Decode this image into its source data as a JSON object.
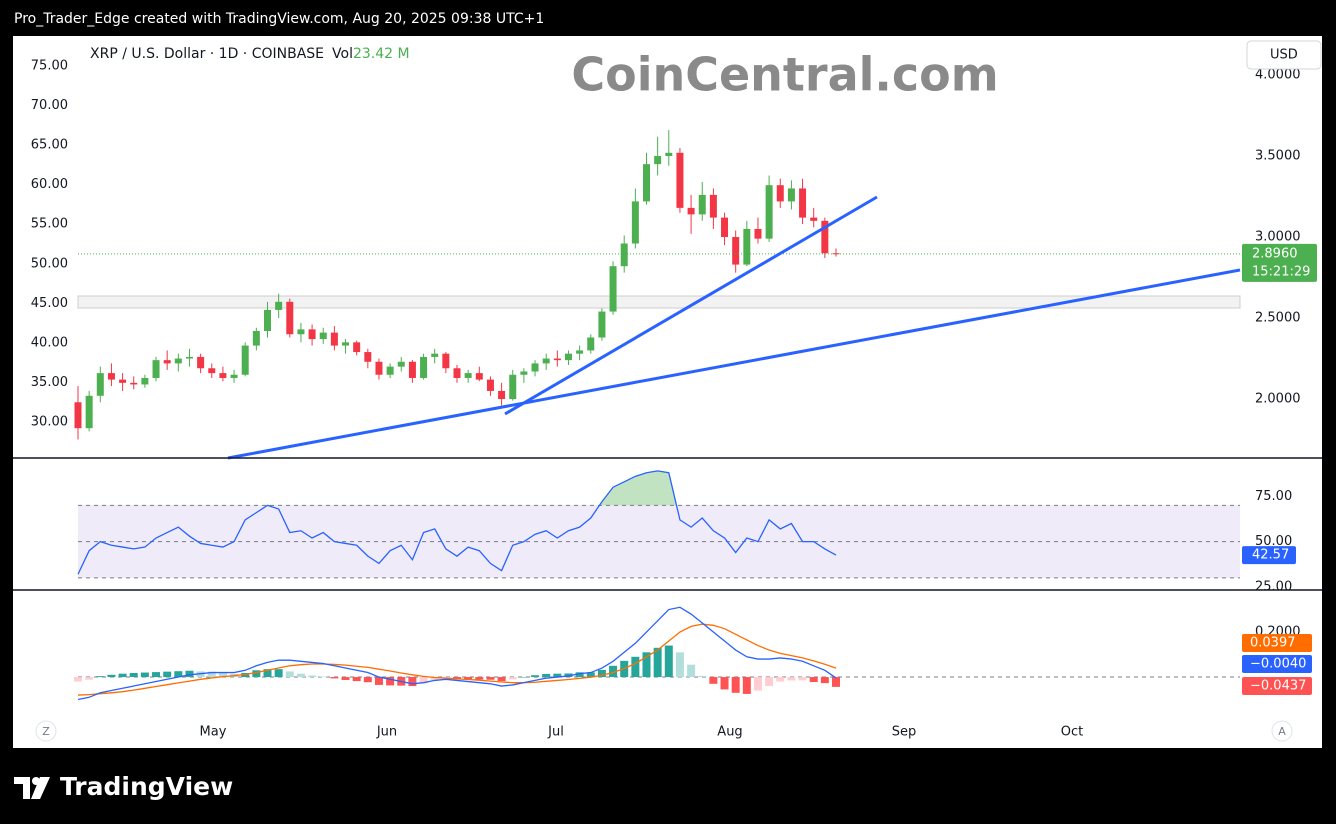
{
  "header": {
    "caption": "Pro_Trader_Edge created with TradingView.com, Aug 20, 2025 09:38 UTC+1"
  },
  "watermark": "CoinCentral.com",
  "buttons": {
    "currency": "USD",
    "zoom": "Z",
    "auto": "A"
  },
  "x_labels": [
    "May",
    "Jun",
    "Jul",
    "Aug",
    "Sep",
    "Oct"
  ],
  "footer": {
    "brand": "TradingView"
  },
  "chart_data": [
    {
      "type": "candlestick",
      "symbol": "XRP / U.S. Dollar · 1D · COINBASE",
      "volume": {
        "label": "Vol",
        "value_label": "23.42 M"
      },
      "colors": {
        "up": "#4caf50",
        "down": "#f23645"
      },
      "ohlc": [
        [
          1.98,
          2.08,
          1.75,
          1.82
        ],
        [
          1.82,
          2.05,
          1.8,
          2.02
        ],
        [
          2.02,
          2.2,
          1.98,
          2.16
        ],
        [
          2.16,
          2.22,
          2.08,
          2.12
        ],
        [
          2.12,
          2.16,
          2.05,
          2.1
        ],
        [
          2.1,
          2.14,
          2.06,
          2.09
        ],
        [
          2.09,
          2.15,
          2.07,
          2.13
        ],
        [
          2.13,
          2.26,
          2.11,
          2.24
        ],
        [
          2.24,
          2.3,
          2.18,
          2.22
        ],
        [
          2.22,
          2.28,
          2.17,
          2.25
        ],
        [
          2.25,
          2.31,
          2.2,
          2.26
        ],
        [
          2.26,
          2.28,
          2.16,
          2.19
        ],
        [
          2.19,
          2.22,
          2.13,
          2.16
        ],
        [
          2.16,
          2.2,
          2.11,
          2.13
        ],
        [
          2.13,
          2.18,
          2.1,
          2.15
        ],
        [
          2.15,
          2.35,
          2.14,
          2.33
        ],
        [
          2.33,
          2.44,
          2.3,
          2.42
        ],
        [
          2.42,
          2.6,
          2.38,
          2.55
        ],
        [
          2.55,
          2.65,
          2.5,
          2.6
        ],
        [
          2.6,
          2.62,
          2.38,
          2.4
        ],
        [
          2.4,
          2.47,
          2.35,
          2.43
        ],
        [
          2.43,
          2.46,
          2.33,
          2.37
        ],
        [
          2.37,
          2.44,
          2.34,
          2.41
        ],
        [
          2.41,
          2.45,
          2.3,
          2.33
        ],
        [
          2.33,
          2.37,
          2.28,
          2.35
        ],
        [
          2.35,
          2.36,
          2.27,
          2.29
        ],
        [
          2.29,
          2.31,
          2.19,
          2.23
        ],
        [
          2.23,
          2.25,
          2.12,
          2.15
        ],
        [
          2.15,
          2.22,
          2.13,
          2.2
        ],
        [
          2.2,
          2.26,
          2.17,
          2.23
        ],
        [
          2.23,
          2.24,
          2.1,
          2.13
        ],
        [
          2.13,
          2.28,
          2.12,
          2.26
        ],
        [
          2.26,
          2.31,
          2.22,
          2.28
        ],
        [
          2.28,
          2.29,
          2.16,
          2.19
        ],
        [
          2.19,
          2.21,
          2.1,
          2.13
        ],
        [
          2.13,
          2.18,
          2.1,
          2.16
        ],
        [
          2.16,
          2.2,
          2.11,
          2.12
        ],
        [
          2.12,
          2.14,
          2.02,
          2.05
        ],
        [
          2.05,
          2.1,
          1.96,
          2.0
        ],
        [
          2.0,
          2.18,
          1.99,
          2.15
        ],
        [
          2.15,
          2.19,
          2.1,
          2.17
        ],
        [
          2.17,
          2.24,
          2.14,
          2.22
        ],
        [
          2.22,
          2.28,
          2.18,
          2.25
        ],
        [
          2.25,
          2.3,
          2.2,
          2.24
        ],
        [
          2.24,
          2.3,
          2.21,
          2.28
        ],
        [
          2.28,
          2.33,
          2.24,
          2.3
        ],
        [
          2.3,
          2.4,
          2.28,
          2.38
        ],
        [
          2.38,
          2.56,
          2.36,
          2.54
        ],
        [
          2.54,
          2.85,
          2.52,
          2.82
        ],
        [
          2.82,
          3.01,
          2.78,
          2.96
        ],
        [
          2.96,
          3.3,
          2.93,
          3.22
        ],
        [
          3.22,
          3.52,
          3.2,
          3.45
        ],
        [
          3.45,
          3.62,
          3.38,
          3.5
        ],
        [
          3.5,
          3.66,
          3.44,
          3.52
        ],
        [
          3.52,
          3.55,
          3.15,
          3.18
        ],
        [
          3.18,
          3.26,
          3.02,
          3.14
        ],
        [
          3.14,
          3.34,
          3.1,
          3.26
        ],
        [
          3.26,
          3.3,
          3.05,
          3.12
        ],
        [
          3.12,
          3.15,
          2.95,
          3.0
        ],
        [
          3.0,
          3.04,
          2.78,
          2.83
        ],
        [
          2.83,
          3.1,
          2.82,
          3.05
        ],
        [
          3.05,
          3.12,
          2.96,
          2.99
        ],
        [
          2.99,
          3.38,
          2.97,
          3.32
        ],
        [
          3.32,
          3.36,
          3.18,
          3.22
        ],
        [
          3.22,
          3.35,
          3.17,
          3.3
        ],
        [
          3.3,
          3.36,
          3.08,
          3.12
        ],
        [
          3.12,
          3.18,
          3.06,
          3.1
        ],
        [
          3.1,
          3.12,
          2.87,
          2.9
        ],
        [
          2.9,
          2.93,
          2.88,
          2.896
        ]
      ],
      "ylim": [
        1.636,
        4.241
      ],
      "yticks": [
        {
          "value": 2,
          "label": "2.0000"
        },
        {
          "value": 2.5,
          "label": "2.5000"
        },
        {
          "value": 3,
          "label": "3.0000"
        },
        {
          "value": 3.5,
          "label": "3.5000"
        },
        {
          "value": 4,
          "label": "4.0000"
        }
      ],
      "y2lim": [
        25.45,
        78.79
      ],
      "y2ticks": [
        {
          "value": 30,
          "label": "30.00"
        },
        {
          "value": 35,
          "label": "35.00"
        },
        {
          "value": 40,
          "label": "40.00"
        },
        {
          "value": 45,
          "label": "45.00"
        },
        {
          "value": 50,
          "label": "50.00"
        },
        {
          "value": 55,
          "label": "55.00"
        },
        {
          "value": 60,
          "label": "60.00"
        },
        {
          "value": 65,
          "label": "65.00"
        },
        {
          "value": 70,
          "label": "70.00"
        },
        {
          "value": 75,
          "label": "75.00"
        }
      ],
      "last_price": {
        "value": 2.896,
        "label": "2.8960"
      },
      "countdown": "15:21:29"
    },
    {
      "type": "rsi",
      "color": "#2962ff",
      "values": [
        32,
        45,
        50,
        48,
        47,
        46,
        47,
        52,
        55,
        58,
        53,
        49,
        48,
        47,
        50,
        62,
        66,
        70,
        68,
        55,
        56,
        52,
        55,
        50,
        49,
        48,
        42,
        38,
        45,
        48,
        40,
        55,
        57,
        46,
        42,
        47,
        45,
        38,
        34,
        48,
        50,
        54,
        56,
        52,
        56,
        58,
        63,
        72,
        80,
        83,
        86,
        88,
        89,
        88,
        62,
        58,
        63,
        56,
        52,
        44,
        52,
        50,
        62,
        57,
        60,
        50,
        50,
        46,
        42.57
      ],
      "levels": [
        70,
        50,
        30
      ],
      "ylim": [
        23.33,
        95.56
      ],
      "yticks": [
        {
          "value": 25,
          "label": "25.00"
        },
        {
          "value": 50,
          "label": "50.00"
        },
        {
          "value": 75,
          "label": "75.00"
        }
      ]
    },
    {
      "type": "macd",
      "macd": {
        "color": "#2962ff",
        "value_label": "−0.0040",
        "values": [
          -0.1,
          -0.09,
          -0.07,
          -0.06,
          -0.05,
          -0.04,
          -0.03,
          -0.02,
          -0.01,
          0.0,
          0.01,
          0.015,
          0.02,
          0.02,
          0.02,
          0.03,
          0.05,
          0.065,
          0.075,
          0.075,
          0.07,
          0.065,
          0.06,
          0.05,
          0.04,
          0.03,
          0.02,
          0.0,
          -0.01,
          -0.02,
          -0.03,
          -0.025,
          -0.015,
          -0.01,
          -0.015,
          -0.02,
          -0.025,
          -0.03,
          -0.04,
          -0.035,
          -0.025,
          -0.015,
          -0.005,
          0.0,
          0.005,
          0.015,
          0.02,
          0.04,
          0.07,
          0.11,
          0.15,
          0.2,
          0.25,
          0.3,
          0.31,
          0.28,
          0.24,
          0.2,
          0.16,
          0.12,
          0.09,
          0.08,
          0.08,
          0.085,
          0.08,
          0.07,
          0.05,
          0.03,
          -0.004
        ]
      },
      "signal": {
        "color": "#ff6d00",
        "values": [
          -0.08,
          -0.078,
          -0.074,
          -0.07,
          -0.065,
          -0.058,
          -0.05,
          -0.042,
          -0.034,
          -0.026,
          -0.018,
          -0.01,
          -0.004,
          0.002,
          0.006,
          0.012,
          0.02,
          0.03,
          0.04,
          0.05,
          0.055,
          0.058,
          0.058,
          0.056,
          0.053,
          0.048,
          0.043,
          0.035,
          0.027,
          0.018,
          0.01,
          0.003,
          -0.002,
          -0.005,
          -0.008,
          -0.011,
          -0.014,
          -0.018,
          -0.022,
          -0.025,
          -0.025,
          -0.023,
          -0.019,
          -0.015,
          -0.011,
          -0.006,
          -0.001,
          0.008,
          0.02,
          0.038,
          0.06,
          0.09,
          0.12,
          0.16,
          0.2,
          0.225,
          0.235,
          0.23,
          0.215,
          0.19,
          0.165,
          0.14,
          0.12,
          0.105,
          0.095,
          0.085,
          0.072,
          0.057,
          0.0397
        ]
      },
      "histogram": {
        "value_label": "−0.0437",
        "colors": {
          "up_rising": "#26a69a",
          "up_falling": "#b2dfdb",
          "down_falling": "#ff5252",
          "down_rising": "#ffcdd2"
        },
        "values": [
          -0.02,
          -0.012,
          0.004,
          0.01,
          0.015,
          0.018,
          0.02,
          0.022,
          0.024,
          0.026,
          0.028,
          0.025,
          0.024,
          0.018,
          0.014,
          0.018,
          0.03,
          0.035,
          0.035,
          0.025,
          0.015,
          0.007,
          0.002,
          -0.006,
          -0.013,
          -0.018,
          -0.023,
          -0.035,
          -0.037,
          -0.038,
          -0.04,
          -0.028,
          -0.013,
          -0.005,
          -0.007,
          -0.009,
          -0.011,
          -0.012,
          -0.018,
          -0.01,
          0.0,
          0.008,
          0.014,
          0.015,
          0.016,
          0.021,
          0.021,
          0.032,
          0.05,
          0.072,
          0.09,
          0.11,
          0.13,
          0.14,
          0.11,
          0.055,
          0.005,
          -0.03,
          -0.055,
          -0.07,
          -0.075,
          -0.06,
          -0.04,
          -0.02,
          -0.015,
          -0.015,
          -0.022,
          -0.027,
          -0.0437
        ]
      },
      "baseline": 0,
      "ylim": [
        -0.182,
        0.378
      ],
      "yticks": [
        {
          "value": 0.2,
          "label": "0.2000"
        }
      ]
    }
  ]
}
